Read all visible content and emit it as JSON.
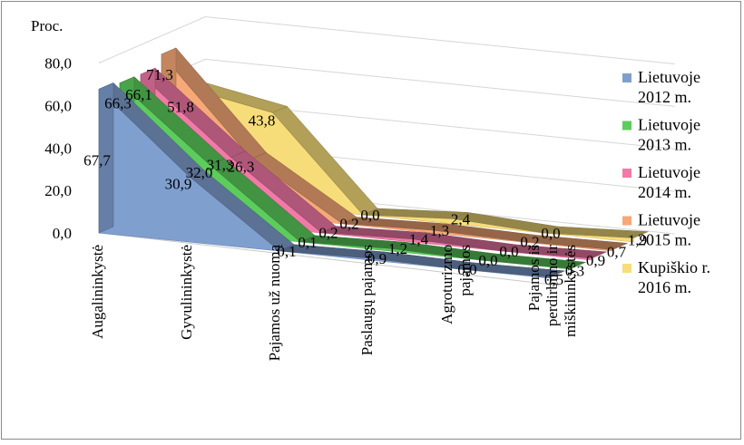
{
  "chart_data": {
    "type": "area",
    "ylabel": "Proc.",
    "ylim": [
      0,
      80
    ],
    "yticks": [
      "0,0",
      "20,0",
      "40,0",
      "60,0",
      "80,0"
    ],
    "categories": [
      [
        "Augalininkystė"
      ],
      [
        "Gyvulininkystė"
      ],
      [
        "Pajamos už nuomą"
      ],
      [
        "Paslaugų pajamos"
      ],
      [
        "Agroturizmo",
        "pajamos"
      ],
      [
        "Pajamos iš",
        "perdirbimo ir",
        "miškininkystės"
      ]
    ],
    "series": [
      {
        "name": [
          "Lietuvoje",
          "2012 m."
        ],
        "color": "#7f9fcf",
        "values": [
          67.7,
          30.9,
          0.1,
          0.9,
          0.0,
          0.5
        ],
        "labels": [
          "67,7",
          "30,9",
          "0,1",
          "0,9",
          "0,0",
          "0,5"
        ]
      },
      {
        "name": [
          "Lietuvoje",
          "2013 m."
        ],
        "color": "#5ccc5c",
        "values": [
          66.3,
          32.0,
          0.1,
          1.2,
          0.0,
          0.3
        ],
        "labels": [
          "66,3",
          "32,0",
          "0,1",
          "1,2",
          "0,0",
          "0,3"
        ]
      },
      {
        "name": [
          "Lietuvoje",
          "2014 m."
        ],
        "color": "#f279a8",
        "values": [
          66.1,
          31.3,
          0.2,
          1.4,
          0.0,
          0.9
        ],
        "labels": [
          "66,1",
          "31,3",
          "0,2",
          "1,4",
          "0,0",
          "0,9"
        ]
      },
      {
        "name": [
          "Lietuvoje",
          "2015 m."
        ],
        "color": "#f6a877",
        "values": [
          71.3,
          26.3,
          0.2,
          1.3,
          0.2,
          0.7
        ],
        "labels": [
          "71,3",
          "26,3",
          "0,2",
          "1,3",
          "0,2",
          "0,7"
        ]
      },
      {
        "name": [
          "Kupiškio r.",
          "2016 m."
        ],
        "color": "#f7dd7a",
        "values": [
          51.8,
          43.8,
          0.0,
          2.4,
          0.0,
          1.9
        ],
        "labels": [
          "51,8",
          "43,8",
          "0,0",
          "2,4",
          "0,0",
          "1,9"
        ]
      }
    ],
    "grid": true,
    "legend": "right"
  }
}
